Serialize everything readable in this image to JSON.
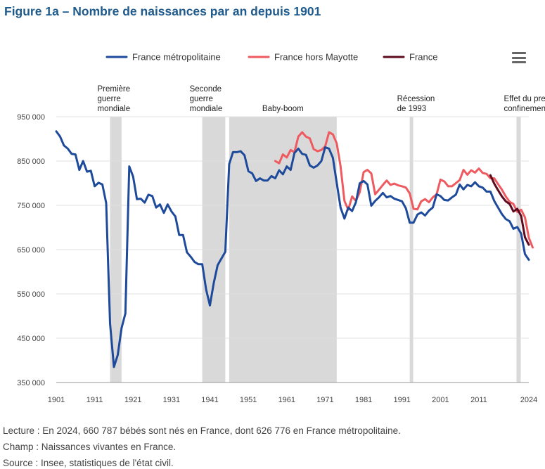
{
  "title": "Figure 1a – Nombre de naissances par an depuis 1901",
  "footnotes": {
    "lecture": "Lecture : En 2024, 660 787 bébés sont nés en France, dont 626 776 en France métropolitaine.",
    "champ": "Champ : Naissances vivantes en France.",
    "source": "Source : Insee, statistiques de l'état civil."
  },
  "menu_icon": "hamburger-menu-icon",
  "chart_data": {
    "type": "line",
    "xlim": [
      1901,
      2024
    ],
    "ylim": [
      350000,
      950000
    ],
    "grid": "horizontal",
    "legend_placement": "top",
    "y_ticks": [
      350000,
      450000,
      550000,
      650000,
      750000,
      850000,
      950000
    ],
    "y_tick_labels": [
      "350 000",
      "450 000",
      "550 000",
      "650 000",
      "750 000",
      "850 000",
      "950 000"
    ],
    "x_ticks": [
      1901,
      1911,
      1921,
      1931,
      1941,
      1951,
      1961,
      1971,
      1981,
      1991,
      2001,
      2011,
      2024
    ],
    "x_tick_labels": [
      "1901",
      "1911",
      "1921",
      "1931",
      "1941",
      "1951",
      "1961",
      "1971",
      "1981",
      "1991",
      "2001",
      "2011",
      "2024"
    ],
    "shaded_periods": [
      {
        "id": "ww1",
        "start": 1915,
        "end": 1918,
        "label": [
          "Première",
          "guerre",
          "mondiale"
        ]
      },
      {
        "id": "ww2",
        "start": 1939,
        "end": 1945,
        "label": [
          "Seconde",
          "guerre",
          "mondiale"
        ]
      },
      {
        "id": "babyboom",
        "start": 1946,
        "end": 1974,
        "label": [
          "Baby-boom"
        ]
      },
      {
        "id": "recession",
        "start": 1993,
        "end": 1993.9,
        "label": [
          "Récession",
          "de 1993"
        ]
      },
      {
        "id": "confinement",
        "start": 2020.8,
        "end": 2021.9,
        "label": [
          "Effet du premier",
          "confinement"
        ]
      }
    ],
    "series": [
      {
        "name": "France métropolitaine",
        "color": "#1d4a9a",
        "start_year": 1901,
        "values": [
          917000,
          905000,
          885000,
          878000,
          866000,
          865000,
          830000,
          850000,
          826000,
          828000,
          793000,
          801000,
          797000,
          755000,
          483000,
          385000,
          412000,
          473000,
          506000,
          838000,
          815000,
          764000,
          765000,
          756000,
          774000,
          771000,
          745000,
          752000,
          733000,
          752000,
          736000,
          725000,
          683000,
          683000,
          644000,
          634000,
          622000,
          617000,
          617000,
          560000,
          524000,
          575000,
          615000,
          630000,
          645000,
          843000,
          870000,
          870000,
          872000,
          863000,
          827000,
          822000,
          805000,
          811000,
          806000,
          806000,
          816000,
          811000,
          829000,
          820000,
          838000,
          830000,
          868000,
          878000,
          866000,
          864000,
          840000,
          835000,
          840000,
          850000,
          881000,
          878000,
          857000,
          801000,
          745000,
          720000,
          745000,
          737000,
          757000,
          800000,
          805000,
          797000,
          749000,
          760000,
          768000,
          778000,
          768000,
          771000,
          765000,
          762000,
          759000,
          743000,
          711000,
          711000,
          729000,
          734000,
          727000,
          738000,
          745000,
          775000,
          771000,
          762000,
          761000,
          768000,
          774000,
          797000,
          786000,
          796000,
          793000,
          802000,
          793000,
          790000,
          781000,
          781000,
          760000,
          745000,
          730000,
          719000,
          714000,
          697000,
          701000,
          686000,
          640000,
          627000
        ]
      },
      {
        "name": "France hors Mayotte",
        "color": "#ee5a5f",
        "start_year": 1958,
        "values": [
          850000,
          845000,
          865000,
          858000,
          875000,
          870000,
          905000,
          915000,
          905000,
          901000,
          877000,
          872000,
          875000,
          883000,
          915000,
          910000,
          890000,
          838000,
          760000,
          740000,
          770000,
          760000,
          780000,
          825000,
          830000,
          822000,
          775000,
          785000,
          796000,
          806000,
          796000,
          799000,
          795000,
          793000,
          790000,
          777000,
          742000,
          741000,
          759000,
          764000,
          757000,
          768000,
          775000,
          808000,
          804000,
          793000,
          793000,
          800000,
          807000,
          830000,
          819000,
          829000,
          824000,
          833000,
          823000,
          821000,
          811000,
          811000,
          798000,
          785000,
          770000,
          758000,
          753000,
          735000,
          740000,
          723000,
          677000,
          655000
        ]
      },
      {
        "name": "France",
        "color": "#5c0a1e",
        "start_year": 2014,
        "values": [
          818000,
          799000,
          784000,
          770000,
          759000,
          753000,
          736000,
          742000,
          726000,
          678000,
          661000
        ]
      }
    ]
  }
}
